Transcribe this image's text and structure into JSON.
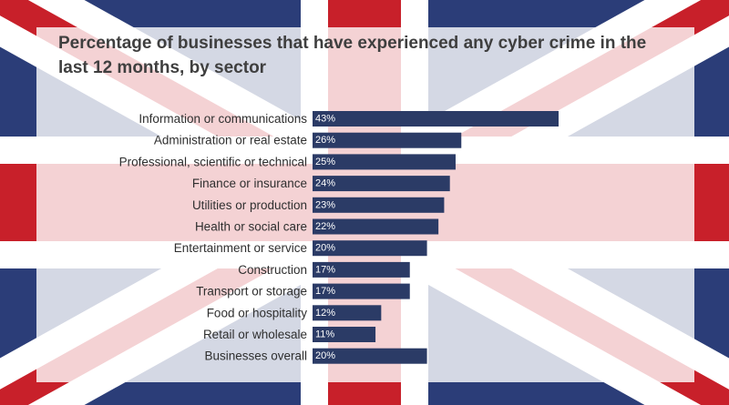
{
  "colors": {
    "bar": "#2b3b66",
    "flag_blue": "#2b3d78",
    "flag_red": "#c8202a",
    "flag_white": "#ffffff"
  },
  "chart_data": {
    "type": "bar",
    "orientation": "horizontal",
    "title": "Percentage of businesses that have experienced any cyber crime in the last 12 months, by sector",
    "categories": [
      "Information or communications",
      "Administration or real estate",
      "Professional, scientific or technical",
      "Finance or insurance",
      "Utilities or production",
      "Health or social care",
      "Entertainment or service",
      "Construction",
      "Transport or storage",
      "Food or hospitality",
      "Retail or wholesale",
      "Businesses overall"
    ],
    "values": [
      43,
      26,
      25,
      24,
      23,
      22,
      20,
      17,
      17,
      12,
      11,
      20
    ],
    "value_labels": [
      "43%",
      "26%",
      "25%",
      "24%",
      "23%",
      "22%",
      "20%",
      "17%",
      "17%",
      "12%",
      "11%",
      "20%"
    ],
    "xlim": [
      0,
      43
    ],
    "grid": false,
    "legend": "none"
  }
}
